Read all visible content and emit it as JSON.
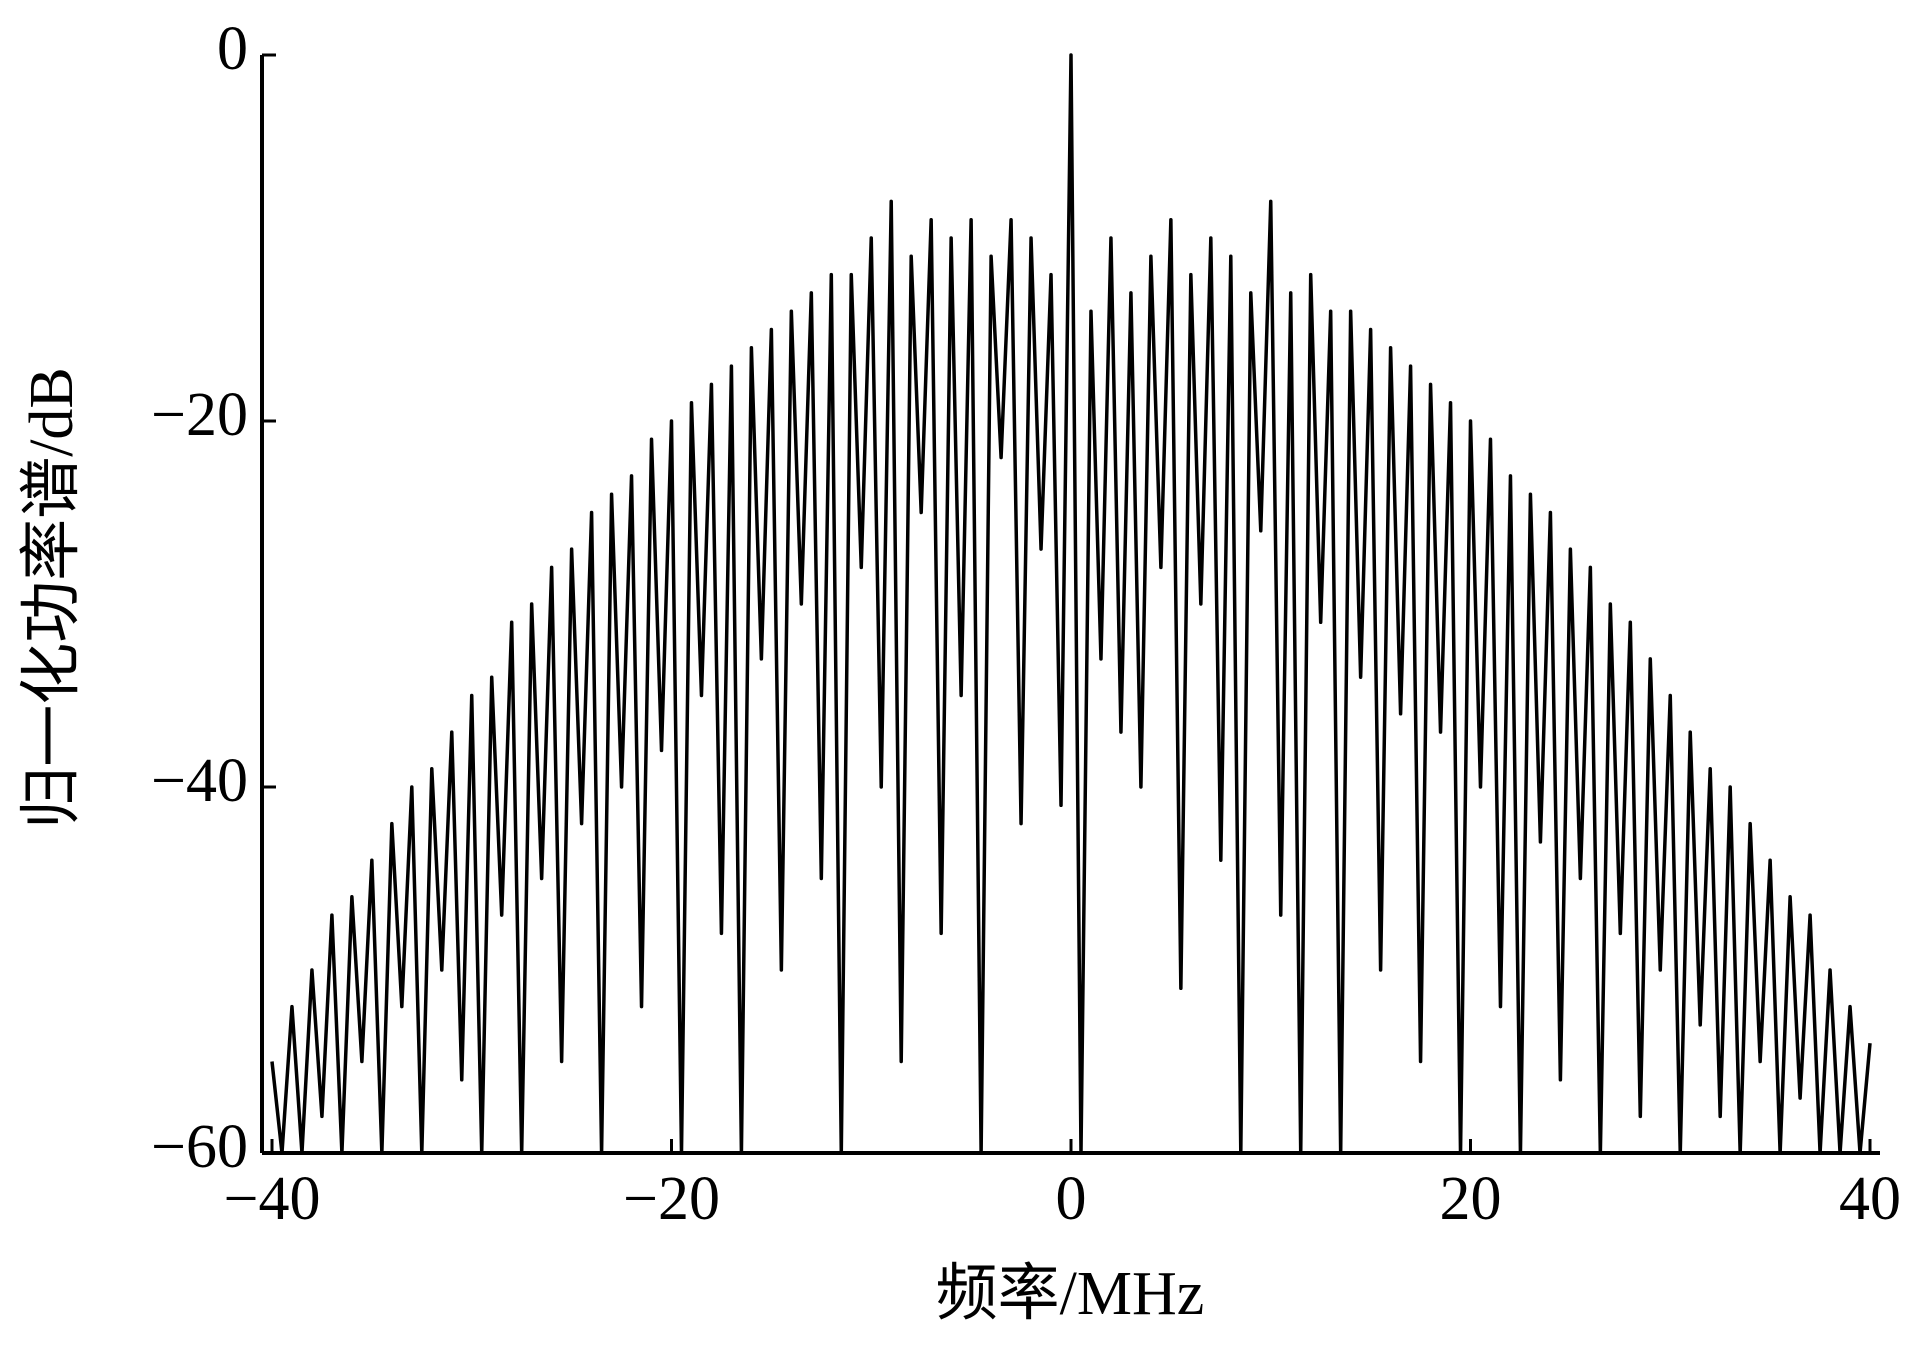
{
  "chart_data": {
    "type": "line",
    "xlabel": "频率/MHz",
    "ylabel": "归一化功率谱/dB",
    "color": "#000000",
    "grid": false,
    "xlim": [
      -40.5,
      40.5
    ],
    "ylim": [
      -60,
      0
    ],
    "xticks": [
      {
        "value": -40,
        "label": "−40"
      },
      {
        "value": -20,
        "label": "−20"
      },
      0,
      20,
      40
    ],
    "yticks": [
      0,
      {
        "value": -20,
        "label": "−20"
      },
      {
        "value": -40,
        "label": "−40"
      },
      {
        "value": -60,
        "label": "−60"
      }
    ],
    "x": [
      -40,
      -39.5,
      -39,
      -38.5,
      -38,
      -37.5,
      -37,
      -36.5,
      -36,
      -35.5,
      -35,
      -34.5,
      -34,
      -33.5,
      -33,
      -32.5,
      -32,
      -31.5,
      -31,
      -30.5,
      -30,
      -29.5,
      -29,
      -28.5,
      -28,
      -27.5,
      -27,
      -26.5,
      -26,
      -25.5,
      -25,
      -24.5,
      -24,
      -23.5,
      -23,
      -22.5,
      -22,
      -21.5,
      -21,
      -20.5,
      -20,
      -19.5,
      -19,
      -18.5,
      -18,
      -17.5,
      -17,
      -16.5,
      -16,
      -15.5,
      -15,
      -14.5,
      -14,
      -13.5,
      -13,
      -12.5,
      -12,
      -11.5,
      -11,
      -10.5,
      -10,
      -9.5,
      -9,
      -8.5,
      -8,
      -7.5,
      -7,
      -6.5,
      -6,
      -5.5,
      -5,
      -4.5,
      -4,
      -3.5,
      -3,
      -2.5,
      -2,
      -1.5,
      -1,
      -0.5,
      0,
      0.5,
      1,
      1.5,
      2,
      2.5,
      3,
      3.5,
      4,
      4.5,
      5,
      5.5,
      6,
      6.5,
      7,
      7.5,
      8,
      8.5,
      9,
      9.5,
      10,
      10.5,
      11,
      11.5,
      12,
      12.5,
      13,
      13.5,
      14,
      14.5,
      15,
      15.5,
      16,
      16.5,
      17,
      17.5,
      18,
      18.5,
      19,
      19.5,
      20,
      20.5,
      21,
      21.5,
      22,
      22.5,
      23,
      23.5,
      24,
      24.5,
      25,
      25.5,
      26,
      26.5,
      27,
      27.5,
      28,
      28.5,
      29,
      29.5,
      30,
      30.5,
      31,
      31.5,
      32,
      32.5,
      33,
      33.5,
      34,
      34.5,
      35,
      35.5,
      36,
      36.5,
      37,
      37.5,
      38,
      38.5,
      39,
      39.5,
      40
    ],
    "values": [
      -55,
      -60,
      -52,
      -60,
      -50,
      -58,
      -47,
      -60,
      -46,
      -55,
      -44,
      -60,
      -42,
      -52,
      -40,
      -60,
      -39,
      -50,
      -37,
      -56,
      -35,
      -60,
      -34,
      -47,
      -31,
      -60,
      -30,
      -45,
      -28,
      -55,
      -27,
      -42,
      -25,
      -60,
      -24,
      -40,
      -23,
      -52,
      -21,
      -38,
      -20,
      -60,
      -19,
      -35,
      -18,
      -48,
      -17,
      -60,
      -16,
      -33,
      -15,
      -50,
      -14,
      -30,
      -13,
      -45,
      -12,
      -60,
      -12,
      -28,
      -10,
      -40,
      -8,
      -55,
      -11,
      -25,
      -9,
      -48,
      -10,
      -35,
      -9,
      -60,
      -11,
      -22,
      -9,
      -42,
      -10,
      -27,
      -12,
      -41,
      0,
      -60,
      -14,
      -33,
      -10,
      -37,
      -13,
      -40,
      -11,
      -28,
      -9,
      -51,
      -12,
      -30,
      -10,
      -44,
      -11,
      -60,
      -13,
      -26,
      -8,
      -47,
      -13,
      -60,
      -12,
      -31,
      -14,
      -60,
      -14,
      -34,
      -15,
      -50,
      -16,
      -36,
      -17,
      -55,
      -18,
      -37,
      -19,
      -60,
      -20,
      -40,
      -21,
      -52,
      -23,
      -60,
      -24,
      -43,
      -25,
      -56,
      -27,
      -45,
      -28,
      -60,
      -30,
      -48,
      -31,
      -58,
      -33,
      -50,
      -35,
      -60,
      -37,
      -53,
      -39,
      -58,
      -40,
      -60,
      -42,
      -55,
      -44,
      -60,
      -46,
      -57,
      -47,
      -60,
      -50,
      -60,
      -52,
      -60,
      -54
    ]
  }
}
